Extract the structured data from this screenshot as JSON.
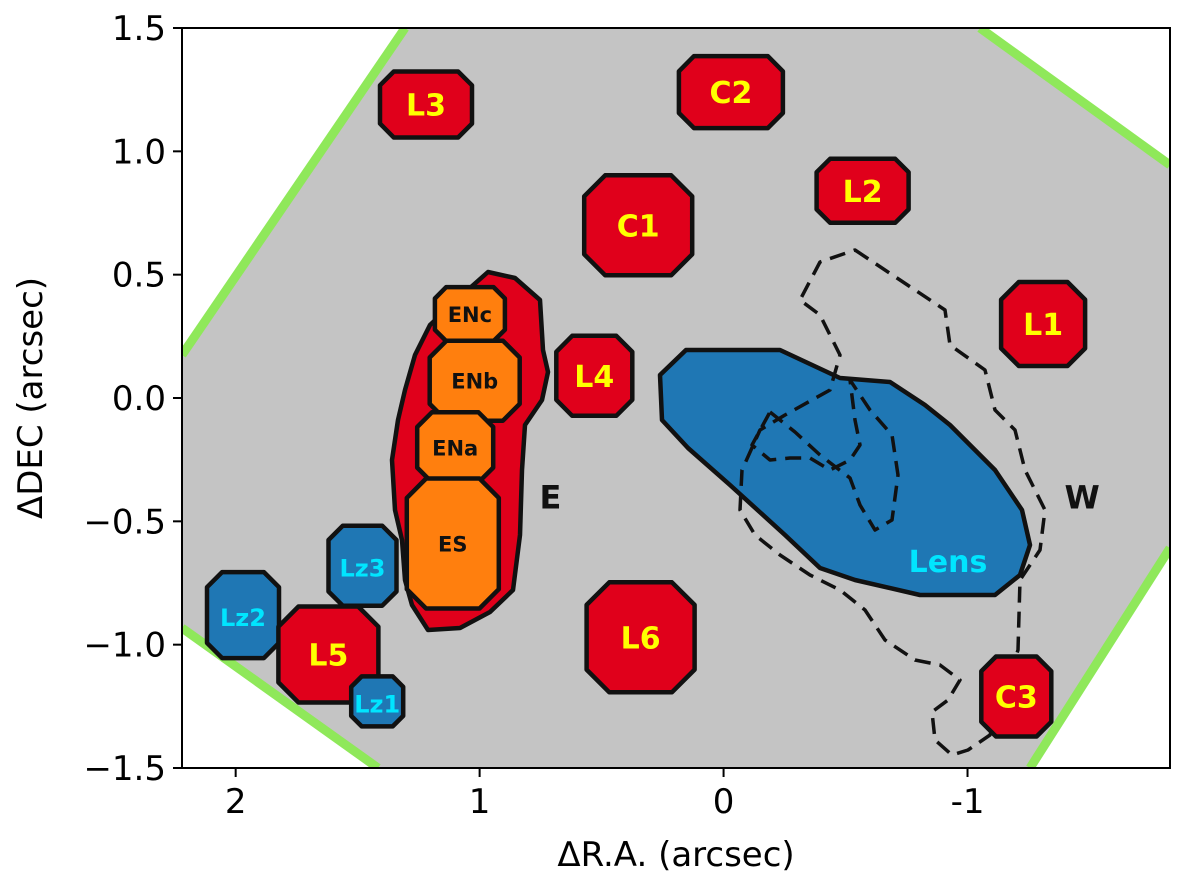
{
  "chart_data": {
    "type": "map",
    "xlabel": "ΔR.A. (arcsec)",
    "ylabel": "ΔDEC (arcsec)",
    "xlim": [
      2.22,
      -1.83
    ],
    "ylim": [
      -1.5,
      1.5
    ],
    "x_reversed": true,
    "xticks": [
      {
        "value": 2,
        "label": "2"
      },
      {
        "value": 1,
        "label": "1"
      },
      {
        "value": 0,
        "label": "0"
      },
      {
        "value": -1,
        "label": "-1"
      }
    ],
    "yticks": [
      {
        "value": 1.5,
        "label": "1.5"
      },
      {
        "value": 1.0,
        "label": "1.0"
      },
      {
        "value": 0.5,
        "label": "0.5"
      },
      {
        "value": 0.0,
        "label": "0.0"
      },
      {
        "value": -0.5,
        "label": "−0.5"
      },
      {
        "value": -1.0,
        "label": "−1.0"
      },
      {
        "value": -1.5,
        "label": "−1.5"
      }
    ],
    "colors": {
      "field": "#c4c4c4",
      "edge": "#8fe85a",
      "region_red": "#e0001b",
      "region_orange": "#ff7f0e",
      "region_blue": "#1f77b4",
      "label_yellow": "#ffff00",
      "label_cyan": "#00e5ff",
      "label_black": "#111111"
    },
    "regions": [
      {
        "label": "L3",
        "kind": "red",
        "x": 1.22,
        "y": 1.19
      },
      {
        "label": "C2",
        "kind": "red",
        "x": -0.03,
        "y": 1.24
      },
      {
        "label": "L2",
        "kind": "red",
        "x": -0.57,
        "y": 0.84
      },
      {
        "label": "C1",
        "kind": "red",
        "x": 0.35,
        "y": 0.7
      },
      {
        "label": "L1",
        "kind": "red",
        "x": -1.31,
        "y": 0.3
      },
      {
        "label": "L4",
        "kind": "red",
        "x": 0.53,
        "y": 0.09
      },
      {
        "label": "ENc",
        "kind": "orange",
        "x": 1.04,
        "y": 0.34
      },
      {
        "label": "ENb",
        "kind": "orange",
        "x": 1.02,
        "y": 0.07
      },
      {
        "label": "ENa",
        "kind": "orange",
        "x": 1.1,
        "y": -0.2
      },
      {
        "label": "ES",
        "kind": "orange",
        "x": 1.11,
        "y": -0.59
      },
      {
        "label": "Lz3",
        "kind": "blue",
        "x": 1.48,
        "y": -0.68
      },
      {
        "label": "Lz2",
        "kind": "blue",
        "x": 1.97,
        "y": -0.88
      },
      {
        "label": "L5",
        "kind": "red",
        "x": 1.62,
        "y": -1.04
      },
      {
        "label": "Lz1",
        "kind": "blue",
        "x": 1.42,
        "y": -1.23
      },
      {
        "label": "L6",
        "kind": "red",
        "x": 0.34,
        "y": -0.97
      },
      {
        "label": "C3",
        "kind": "red",
        "x": -1.2,
        "y": -1.21
      },
      {
        "label": "Lens",
        "kind": "blue",
        "x": -0.92,
        "y": -0.66
      }
    ],
    "annotations": [
      {
        "text": "E",
        "x": 0.71,
        "y": -0.4
      },
      {
        "text": "W",
        "x": -1.47,
        "y": -0.4
      }
    ]
  }
}
